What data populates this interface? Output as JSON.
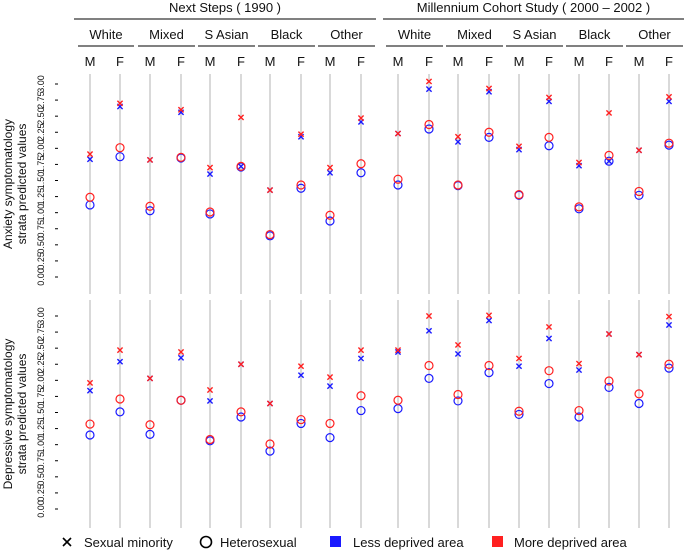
{
  "chart_data": {
    "type": "scatter",
    "studies": [
      {
        "label": "Next Steps ( 1990 )"
      },
      {
        "label": "Millennium Cohort Study ( 2000 – 2002 )"
      }
    ],
    "ethnicities": [
      "White",
      "Mixed",
      "S Asian",
      "Black",
      "Other"
    ],
    "sexes": [
      "M",
      "F"
    ],
    "panels": [
      {
        "ylabel_line1": "Anxiety symptomatology",
        "ylabel_line2": "strata predicted values"
      },
      {
        "ylabel_line1": "Depressive symptomatology",
        "ylabel_line2": "strata predicted values"
      }
    ],
    "ylim": [
      0,
      3
    ],
    "y_ticks": [
      "0.00",
      "0.25",
      "0.50",
      "0.75",
      "1.00",
      "1.25",
      "1.50",
      "1.75",
      "2.00",
      "2.25",
      "2.50",
      "2.75",
      "3.00"
    ],
    "legend": {
      "sexual_minority": "Sexual minority",
      "heterosexual": "Heterosexual",
      "less_deprived": "Less deprived area",
      "more_deprived": "More deprived area"
    },
    "colors": {
      "less_deprived": "#1a1aff",
      "more_deprived": "#ff2020",
      "gridline": "#d9d9d9"
    },
    "column_order_note": "Each values array lists 20 columns: Next Steps (White M, White F, Mixed M, Mixed F, S Asian M, S Asian F, Black M, Black F, Other M, Other F) then Millennium Cohort Study in the same order.",
    "series": [
      {
        "panel": "anxiety",
        "orientation": "sexual_minority",
        "deprivation": "less_deprived",
        "name": "Sexual minority, Less deprived area",
        "values": [
          1.83,
          2.65,
          1.82,
          2.56,
          1.6,
          1.72,
          1.35,
          2.18,
          1.62,
          2.41,
          2.23,
          2.92,
          2.1,
          2.88,
          1.98,
          2.73,
          1.73,
          1.8,
          1.97,
          2.73
        ]
      },
      {
        "panel": "anxiety",
        "orientation": "sexual_minority",
        "deprivation": "more_deprived",
        "name": "Sexual minority, More deprived area",
        "values": [
          1.91,
          2.7,
          1.82,
          2.6,
          1.7,
          2.48,
          1.35,
          2.22,
          1.7,
          2.47,
          2.23,
          3.04,
          2.18,
          2.93,
          2.03,
          2.79,
          1.78,
          2.55,
          1.97,
          2.8
        ]
      },
      {
        "panel": "anxiety",
        "orientation": "heterosexual",
        "deprivation": "less_deprived",
        "name": "Heterosexual, Less deprived area",
        "values": [
          1.12,
          1.87,
          1.03,
          1.85,
          0.98,
          1.71,
          0.64,
          1.38,
          0.87,
          1.62,
          1.43,
          2.3,
          1.42,
          2.17,
          1.27,
          2.04,
          1.06,
          1.8,
          1.27,
          2.05
        ]
      },
      {
        "panel": "anxiety",
        "orientation": "heterosexual",
        "deprivation": "more_deprived",
        "name": "Heterosexual, More deprived area",
        "values": [
          1.24,
          2.01,
          1.1,
          1.86,
          1.01,
          1.72,
          0.66,
          1.43,
          0.96,
          1.76,
          1.52,
          2.37,
          1.43,
          2.25,
          1.28,
          2.17,
          1.09,
          1.89,
          1.33,
          2.08
        ]
      },
      {
        "panel": "depressive",
        "orientation": "sexual_minority",
        "deprivation": "less_deprived",
        "name": "Sexual minority, Less deprived area",
        "values": [
          1.84,
          2.29,
          2.03,
          2.35,
          1.68,
          2.25,
          1.64,
          2.08,
          1.91,
          2.34,
          2.44,
          2.77,
          2.41,
          2.93,
          2.22,
          2.65,
          2.16,
          2.72,
          2.4,
          2.86
        ]
      },
      {
        "panel": "depressive",
        "orientation": "sexual_minority",
        "deprivation": "more_deprived",
        "name": "Sexual minority, More deprived area",
        "values": [
          1.96,
          2.47,
          2.03,
          2.44,
          1.85,
          2.25,
          1.64,
          2.22,
          2.05,
          2.47,
          2.47,
          3.0,
          2.55,
          3.01,
          2.34,
          2.83,
          2.26,
          2.72,
          2.4,
          2.99
        ]
      },
      {
        "panel": "depressive",
        "orientation": "heterosexual",
        "deprivation": "less_deprived",
        "name": "Heterosexual, Less deprived area",
        "values": [
          1.15,
          1.51,
          1.16,
          1.69,
          1.06,
          1.43,
          0.9,
          1.33,
          1.11,
          1.53,
          1.56,
          2.03,
          1.68,
          2.12,
          1.47,
          1.95,
          1.43,
          1.89,
          1.64,
          2.19
        ]
      },
      {
        "panel": "depressive",
        "orientation": "heterosexual",
        "deprivation": "more_deprived",
        "name": "Heterosexual, More deprived area",
        "values": [
          1.32,
          1.71,
          1.31,
          1.69,
          1.08,
          1.51,
          1.01,
          1.39,
          1.33,
          1.76,
          1.69,
          2.23,
          1.78,
          2.23,
          1.52,
          2.15,
          1.53,
          1.99,
          1.79,
          2.25
        ]
      }
    ]
  }
}
